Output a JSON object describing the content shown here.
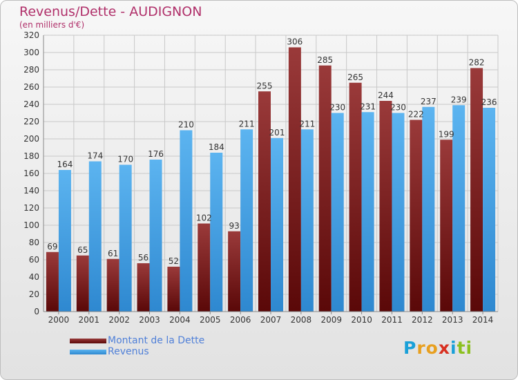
{
  "chart_data": {
    "type": "bar",
    "title": "Revenus/Dette - AUDIGNON",
    "subtitle": "(en milliers d'€)",
    "categories": [
      "2000",
      "2001",
      "2002",
      "2003",
      "2004",
      "2005",
      "2006",
      "2007",
      "2008",
      "2009",
      "2010",
      "2011",
      "2012",
      "2013",
      "2014"
    ],
    "series": [
      {
        "name": "Montant de la Dette",
        "color": "#7a1e1e",
        "values": [
          69,
          65,
          61,
          56,
          52,
          102,
          93,
          255,
          306,
          285,
          265,
          244,
          222,
          199,
          282
        ]
      },
      {
        "name": "Revenus",
        "color": "#4da6e6",
        "values": [
          164,
          174,
          170,
          176,
          210,
          184,
          211,
          201,
          211,
          230,
          231,
          230,
          237,
          239,
          236
        ]
      }
    ],
    "ylim": [
      0,
      320
    ],
    "ytick_step": 20,
    "grid": true,
    "legend_position": "bottom-left"
  },
  "logo_text": "Proxiti",
  "logo_letters": [
    "P",
    "r",
    "o",
    "x",
    "i",
    "ti"
  ]
}
